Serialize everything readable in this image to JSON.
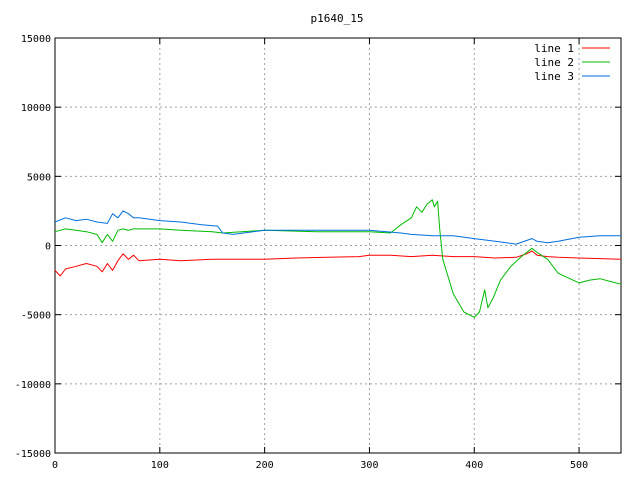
{
  "chart_data": {
    "type": "line",
    "title": "p1640_15",
    "xlabel": "",
    "ylabel": "",
    "xlim": [
      0,
      540
    ],
    "ylim": [
      -15000,
      15000
    ],
    "x_ticks": [
      0,
      100,
      200,
      300,
      400,
      500
    ],
    "y_ticks": [
      -15000,
      -10000,
      -5000,
      0,
      5000,
      10000,
      15000
    ],
    "grid": true,
    "legend_position": "top-right",
    "series": [
      {
        "name": "line 1",
        "color": "#ff0000",
        "x": [
          0,
          5,
          10,
          20,
          30,
          40,
          45,
          50,
          55,
          60,
          65,
          70,
          75,
          80,
          100,
          120,
          150,
          180,
          200,
          230,
          260,
          290,
          300,
          320,
          340,
          360,
          380,
          400,
          420,
          440,
          450,
          455,
          460,
          470,
          480,
          500,
          520,
          540
        ],
        "y": [
          -1800,
          -2200,
          -1700,
          -1500,
          -1300,
          -1500,
          -1900,
          -1300,
          -1800,
          -1100,
          -600,
          -1000,
          -700,
          -1100,
          -1000,
          -1100,
          -1000,
          -1000,
          -1000,
          -900,
          -850,
          -800,
          -700,
          -700,
          -800,
          -700,
          -800,
          -800,
          -900,
          -850,
          -600,
          -400,
          -700,
          -800,
          -850,
          -900,
          -950,
          -1000
        ]
      },
      {
        "name": "line 2",
        "color": "#00bb00",
        "x": [
          0,
          10,
          20,
          30,
          40,
          45,
          50,
          55,
          60,
          65,
          70,
          75,
          80,
          100,
          120,
          150,
          160,
          200,
          250,
          300,
          320,
          330,
          340,
          345,
          350,
          355,
          360,
          362,
          365,
          367,
          370,
          380,
          390,
          400,
          405,
          410,
          413,
          418,
          425,
          435,
          445,
          455,
          460,
          470,
          480,
          500,
          510,
          520,
          530,
          540
        ],
        "y": [
          1000,
          1200,
          1100,
          1000,
          800,
          200,
          800,
          300,
          1100,
          1200,
          1100,
          1200,
          1200,
          1200,
          1100,
          1000,
          900,
          1100,
          1000,
          1000,
          900,
          1500,
          2000,
          2800,
          2400,
          3000,
          3300,
          2800,
          3200,
          1200,
          -1000,
          -3500,
          -4800,
          -5200,
          -4800,
          -3200,
          -4500,
          -3800,
          -2500,
          -1500,
          -800,
          -200,
          -500,
          -1000,
          -2000,
          -2700,
          -2500,
          -2400,
          -2600,
          -2800
        ]
      },
      {
        "name": "line 3",
        "color": "#0070dd",
        "x": [
          0,
          10,
          20,
          30,
          40,
          50,
          55,
          60,
          65,
          70,
          75,
          80,
          100,
          120,
          140,
          155,
          160,
          170,
          180,
          200,
          250,
          300,
          330,
          340,
          360,
          380,
          400,
          420,
          440,
          455,
          460,
          470,
          480,
          500,
          520,
          540
        ],
        "y": [
          1700,
          2000,
          1800,
          1900,
          1700,
          1600,
          2300,
          2000,
          2500,
          2300,
          2000,
          2000,
          1800,
          1700,
          1500,
          1400,
          900,
          800,
          900,
          1100,
          1100,
          1100,
          900,
          800,
          700,
          700,
          500,
          300,
          100,
          500,
          300,
          200,
          300,
          600,
          700,
          700
        ]
      }
    ]
  }
}
